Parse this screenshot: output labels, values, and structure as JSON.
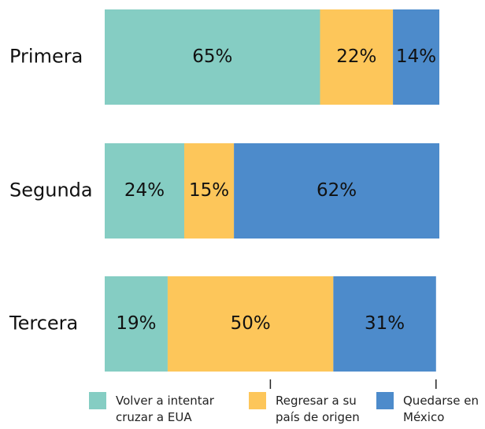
{
  "chart_data": {
    "type": "stacked-bar-horizontal",
    "categories": [
      "Primera",
      "Segunda",
      "Tercera"
    ],
    "series": [
      {
        "name": "Volver a intentar cruzar a EUA",
        "color": "#85cdc3",
        "values": [
          65,
          24,
          19
        ],
        "value_labels": [
          "65%",
          "24%",
          "19%"
        ]
      },
      {
        "name": "Regresar a su país de origen",
        "color": "#fdc65a",
        "values": [
          22,
          15,
          50
        ],
        "value_labels": [
          "22%",
          "15%",
          "50%"
        ]
      },
      {
        "name": "Quedarse en México",
        "color": "#4d8bcb",
        "values": [
          14,
          62,
          31
        ],
        "value_labels": [
          "14%",
          "62%",
          "31%"
        ]
      }
    ],
    "xlim": [
      0,
      101
    ],
    "xticks": [
      50,
      100
    ],
    "legend": "bottom"
  }
}
